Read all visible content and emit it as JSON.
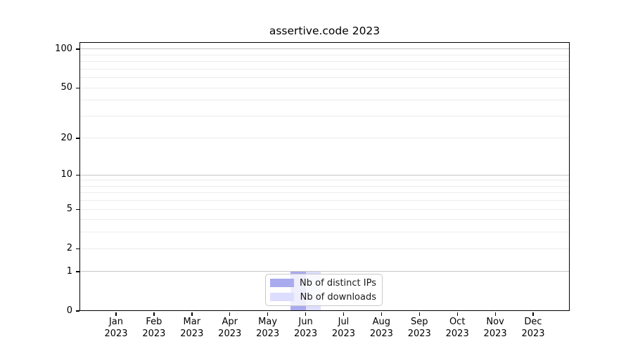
{
  "chart_data": {
    "type": "bar",
    "title": "assertive.code 2023",
    "categories": [
      "Jan",
      "Feb",
      "Mar",
      "Apr",
      "May",
      "Jun",
      "Jul",
      "Aug",
      "Sep",
      "Oct",
      "Nov",
      "Dec"
    ],
    "x_year_label": "2023",
    "series": [
      {
        "name": "Nb of distinct IPs",
        "color": "#aaaaee",
        "values": [
          0,
          0,
          0,
          0,
          0,
          1,
          0,
          0,
          0,
          0,
          0,
          0
        ]
      },
      {
        "name": "Nb of downloads",
        "color": "#ddddff",
        "values": [
          0,
          0,
          0,
          0,
          0,
          1,
          0,
          0,
          0,
          0,
          0,
          0
        ]
      }
    ],
    "y_axis": {
      "scale": "log10(1+y)",
      "tick_values": [
        0,
        1,
        2,
        5,
        10,
        20,
        50,
        100
      ],
      "major_gridlines": [
        1,
        10,
        100
      ],
      "minor_gridlines": [
        2,
        3,
        4,
        5,
        6,
        7,
        8,
        9,
        20,
        30,
        40,
        50,
        60,
        70,
        80,
        90
      ],
      "ylim": [
        0,
        113
      ]
    },
    "legend": {
      "position": "bottom-center"
    },
    "grid": true,
    "colors": {
      "major_gridline": "#c6c6c6",
      "minor_gridline": "#ececec",
      "axis": "#000000",
      "background": "#ffffff"
    }
  }
}
